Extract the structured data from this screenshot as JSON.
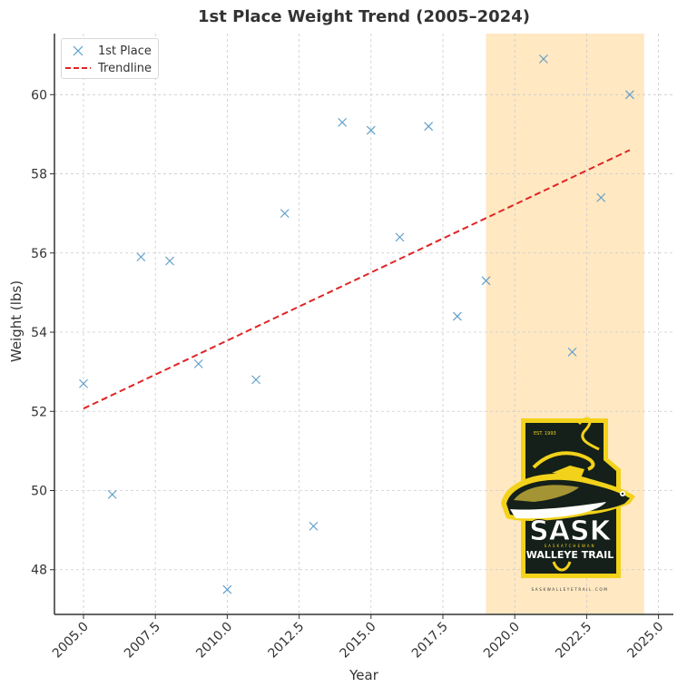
{
  "chart_data": {
    "type": "scatter",
    "title": "1st Place Weight Trend (2005–2024)",
    "xlabel": "Year",
    "ylabel": "Weight (lbs)",
    "xlim": [
      2004.0,
      2025.5
    ],
    "ylim": [
      46.9,
      61.55
    ],
    "xticks": [
      2005.0,
      2007.5,
      2010.0,
      2012.5,
      2015.0,
      2017.5,
      2020.0,
      2022.5,
      2025.0
    ],
    "xtick_labels": [
      "2005.0",
      "2007.5",
      "2010.0",
      "2012.5",
      "2015.0",
      "2017.5",
      "2020.0",
      "2022.5",
      "2025.0"
    ],
    "yticks": [
      48,
      50,
      52,
      54,
      56,
      58,
      60
    ],
    "ytick_labels": [
      "48",
      "50",
      "52",
      "54",
      "56",
      "58",
      "60"
    ],
    "grid": true,
    "legend_position": "upper left",
    "series": [
      {
        "name": "1st Place",
        "type": "scatter",
        "marker": "x",
        "color": "#5b9bc7",
        "x": [
          2005,
          2006,
          2007,
          2008,
          2009,
          2010,
          2011,
          2012,
          2013,
          2014,
          2015,
          2016,
          2017,
          2018,
          2019,
          2021,
          2022,
          2023,
          2024
        ],
        "y": [
          52.7,
          49.9,
          55.9,
          55.8,
          53.2,
          47.5,
          52.8,
          57.0,
          49.1,
          59.3,
          59.1,
          56.4,
          59.2,
          54.4,
          55.3,
          60.9,
          53.5,
          57.4,
          60.0
        ]
      },
      {
        "name": "Trendline",
        "type": "line",
        "style": "dashed",
        "color": "#e02424",
        "x": [
          2005,
          2024
        ],
        "y": [
          52.07,
          58.6
        ]
      }
    ],
    "annotations": [
      {
        "type": "shaded_region",
        "x_start": 2019.0,
        "x_end": 2024.5,
        "color": "#ffe8c2"
      }
    ]
  },
  "legend": {
    "items": [
      {
        "label": "1st Place",
        "symbol": "x-marker",
        "color": "#5b9bc7"
      },
      {
        "label": "Trendline",
        "symbol": "dashed-line",
        "color": "#e02424"
      }
    ]
  },
  "logo": {
    "est": "EST. 1993",
    "name_big": "SASK",
    "name_small": "SASKATCHEWAN",
    "subtitle": "WALLEYE TRAIL",
    "website": "SASKWALLEYETRAIL.COM",
    "colors": {
      "dark": "#15201a",
      "yellow": "#f2d21a",
      "white": "#ffffff"
    }
  },
  "colors": {
    "axis": "#333333",
    "grid": "#cccccc",
    "shade": "#ffe8c2",
    "marker": "#5b9bc7",
    "trend": "#e02424"
  }
}
